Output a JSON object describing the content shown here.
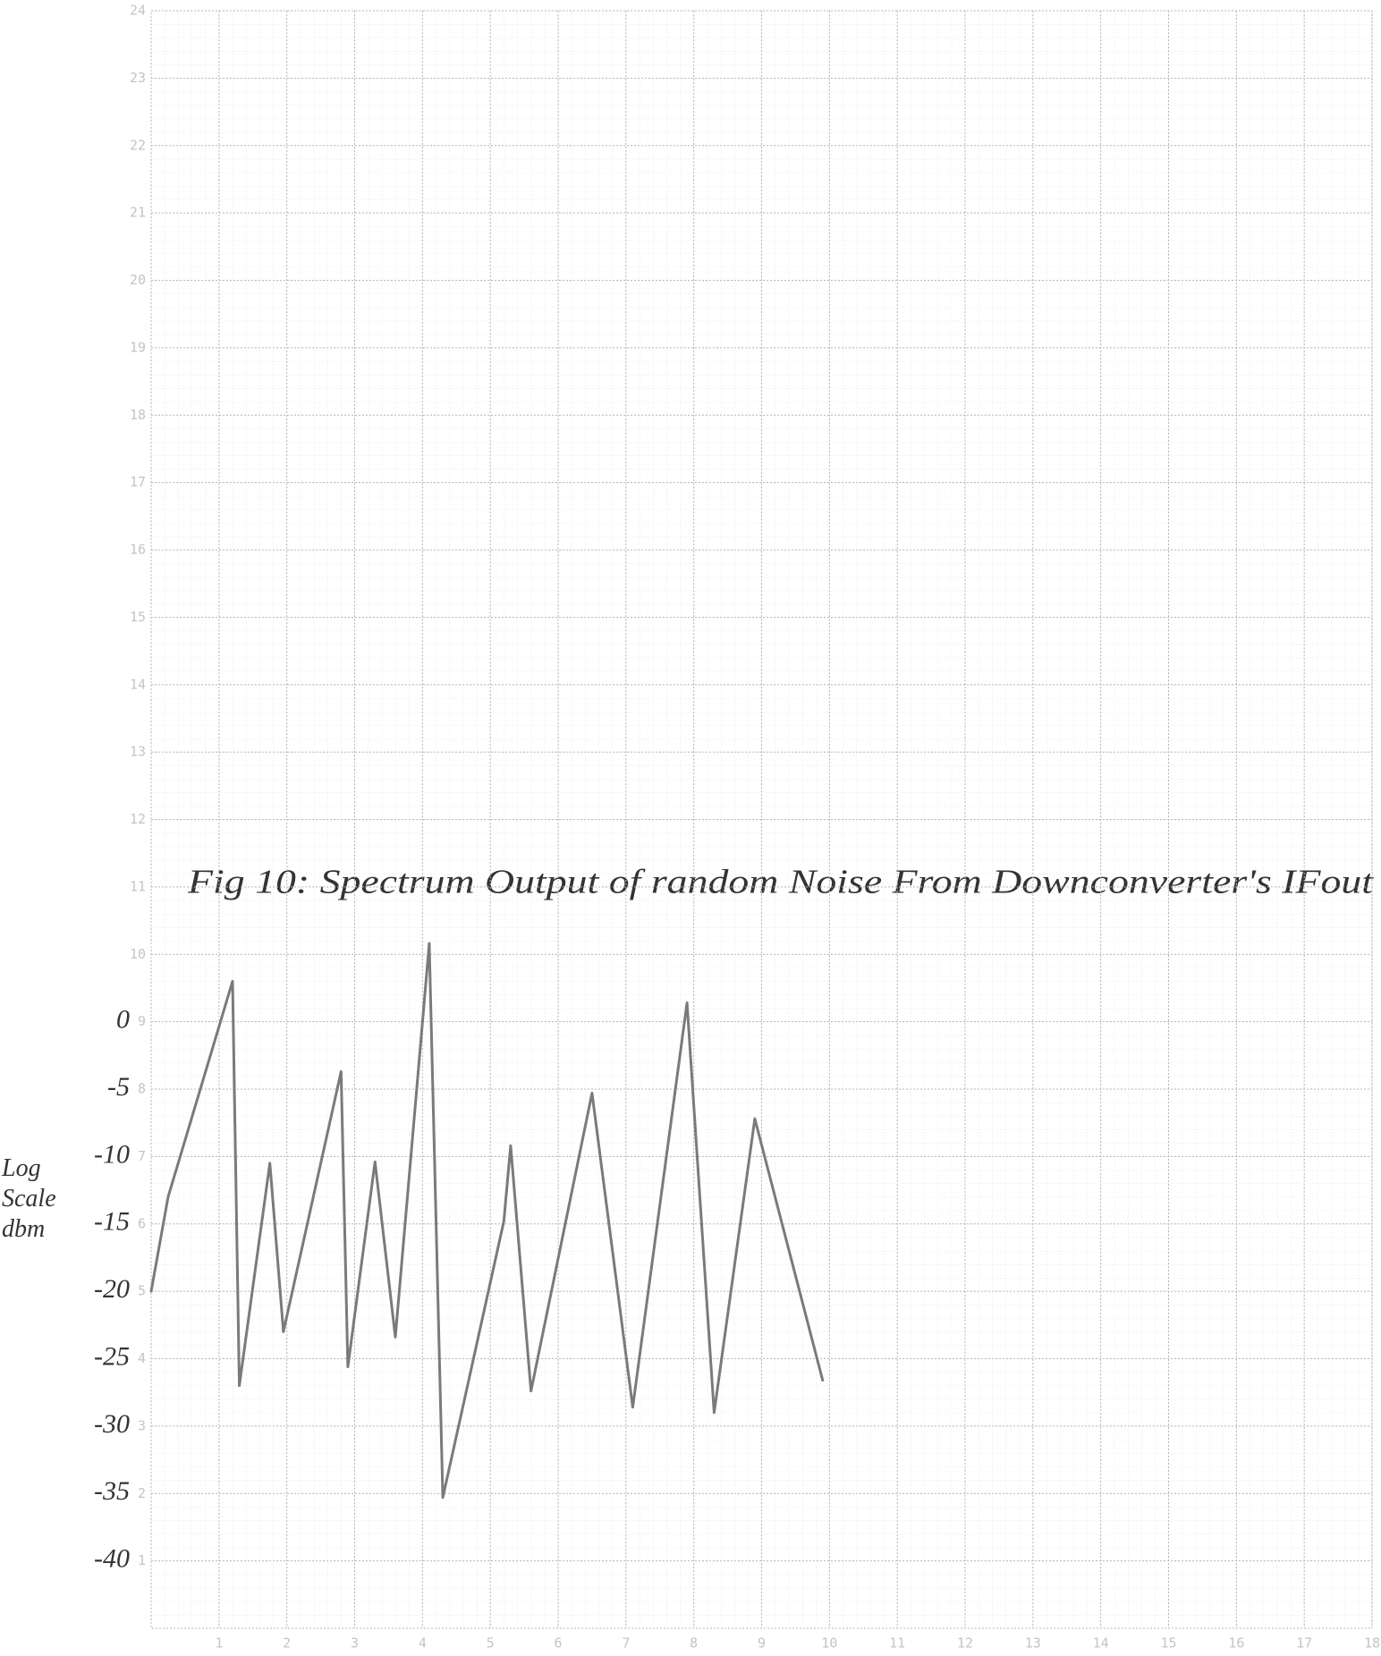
{
  "chart_data": {
    "type": "line",
    "title": "Fig 10: Spectrum Output of random Noise From Downconverter's IFout",
    "y2label": "Log Scale dbm",
    "x": [
      0,
      0.25,
      1.2,
      1.3,
      1.75,
      1.95,
      2.8,
      2.9,
      3.3,
      3.6,
      4.1,
      4.3,
      5.2,
      5.3,
      5.6,
      6.5,
      7.1,
      7.9,
      8.3,
      8.9,
      9.9
    ],
    "series": [
      {
        "color": "#7a7a7a",
        "axis": "y2",
        "values": [
          -20,
          -13,
          3,
          -27,
          -10.5,
          -23,
          -3.7,
          -25.6,
          -10.4,
          -23.4,
          5.8,
          -35.3,
          -14.8,
          -9.2,
          -27.4,
          -5.3,
          -28.6,
          1.4,
          -29,
          -7.2,
          -26.6
        ]
      }
    ],
    "xlim": [
      0,
      18
    ],
    "xticks": [
      1,
      2,
      3,
      4,
      5,
      6,
      7,
      8,
      9,
      10,
      11,
      12,
      13,
      14,
      15,
      16,
      17,
      18
    ],
    "ylim": [
      0,
      24
    ],
    "yticks": [
      1,
      2,
      3,
      4,
      5,
      6,
      7,
      8,
      9,
      10,
      11,
      12,
      13,
      14,
      15,
      16,
      17,
      18,
      19,
      20,
      21,
      22,
      23,
      24
    ],
    "y2lim": [
      -45,
      75
    ],
    "y2ticks": [
      0,
      -5,
      -10,
      -15,
      -20,
      -25,
      -30,
      -35,
      -40
    ],
    "grid": true
  }
}
